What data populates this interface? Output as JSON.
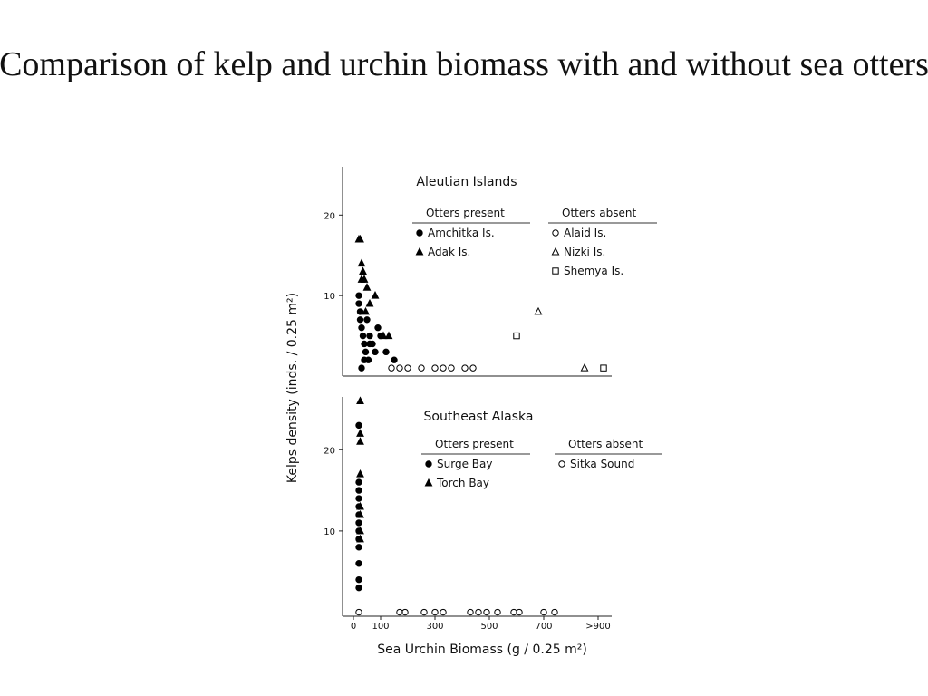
{
  "title": "Comparison of kelp and urchin biomass with and without sea otters",
  "chart_data": [
    {
      "type": "scatter",
      "title": "Aleutian Islands",
      "y_label": "Kelps density (inds. / 0.25 m²)",
      "xlim": [
        -40,
        950
      ],
      "ylim": [
        0,
        26
      ],
      "yticks": [
        10,
        20
      ],
      "legend_groups": [
        "Otters present",
        "Otters absent"
      ],
      "series": [
        {
          "name": "Amchitka Is.",
          "group": 0,
          "marker": "circle",
          "filled": true,
          "color": "#000000",
          "x": [
            20,
            25,
            30,
            35,
            40,
            45,
            50,
            55,
            60,
            70,
            80,
            90,
            100,
            120,
            150,
            20,
            30,
            40,
            60,
            25
          ],
          "values": [
            10,
            8,
            6,
            5,
            4,
            3,
            7,
            2,
            5,
            4,
            3,
            6,
            5,
            3,
            2,
            9,
            1,
            2,
            4,
            7
          ]
        },
        {
          "name": "Adak Is.",
          "group": 0,
          "marker": "triangle",
          "filled": true,
          "color": "#000000",
          "x": [
            20,
            25,
            30,
            35,
            40,
            50,
            60,
            80,
            110,
            130,
            45,
            30
          ],
          "values": [
            17,
            17,
            14,
            13,
            12,
            11,
            9,
            10,
            5,
            5,
            8,
            12
          ]
        },
        {
          "name": "Alaid Is.",
          "group": 1,
          "marker": "circle",
          "filled": false,
          "color": "#000000",
          "x": [
            140,
            170,
            200,
            250,
            300,
            330,
            360,
            410,
            440
          ],
          "values": [
            1,
            1,
            1,
            1,
            1,
            1,
            1,
            1,
            1
          ]
        },
        {
          "name": "Nizki Is.",
          "group": 1,
          "marker": "triangle",
          "filled": false,
          "color": "#000000",
          "x": [
            680,
            850
          ],
          "values": [
            8,
            1
          ]
        },
        {
          "name": "Shemya Is.",
          "group": 1,
          "marker": "square",
          "filled": false,
          "color": "#000000",
          "x": [
            600,
            920
          ],
          "values": [
            5,
            1
          ]
        }
      ]
    },
    {
      "type": "scatter",
      "title": "Southeast Alaska",
      "x_label": "Sea Urchin Biomass (g / 0.25 m²)",
      "xlim": [
        -40,
        950
      ],
      "ylim": [
        -0.5,
        26.5
      ],
      "yticks": [
        10,
        20
      ],
      "xticks": [
        0,
        100,
        300,
        500,
        700,
        {
          "value": 900,
          "label": ">900"
        }
      ],
      "legend_groups": [
        "Otters present",
        "Otters absent"
      ],
      "series": [
        {
          "name": "Surge Bay",
          "group": 0,
          "marker": "circle",
          "filled": true,
          "color": "#000000",
          "x": [
            20,
            20,
            20,
            20,
            20,
            20,
            20,
            20,
            20,
            20,
            20,
            20,
            20
          ],
          "values": [
            3,
            4,
            6,
            8,
            9,
            10,
            11,
            12,
            13,
            14,
            15,
            16,
            23
          ]
        },
        {
          "name": "Torch Bay",
          "group": 0,
          "marker": "triangle",
          "filled": true,
          "color": "#000000",
          "x": [
            25,
            25,
            25,
            25,
            25,
            25,
            25,
            25
          ],
          "values": [
            26,
            22,
            21,
            17,
            13,
            12,
            10,
            9
          ]
        },
        {
          "name": "Sitka Sound",
          "group": 1,
          "marker": "circle",
          "filled": false,
          "color": "#000000",
          "x": [
            20,
            170,
            190,
            260,
            300,
            330,
            430,
            460,
            490,
            530,
            590,
            610,
            700,
            740
          ],
          "values": [
            0,
            0,
            0,
            0,
            0,
            0,
            0,
            0,
            0,
            0,
            0,
            0,
            0,
            0
          ]
        }
      ]
    }
  ]
}
